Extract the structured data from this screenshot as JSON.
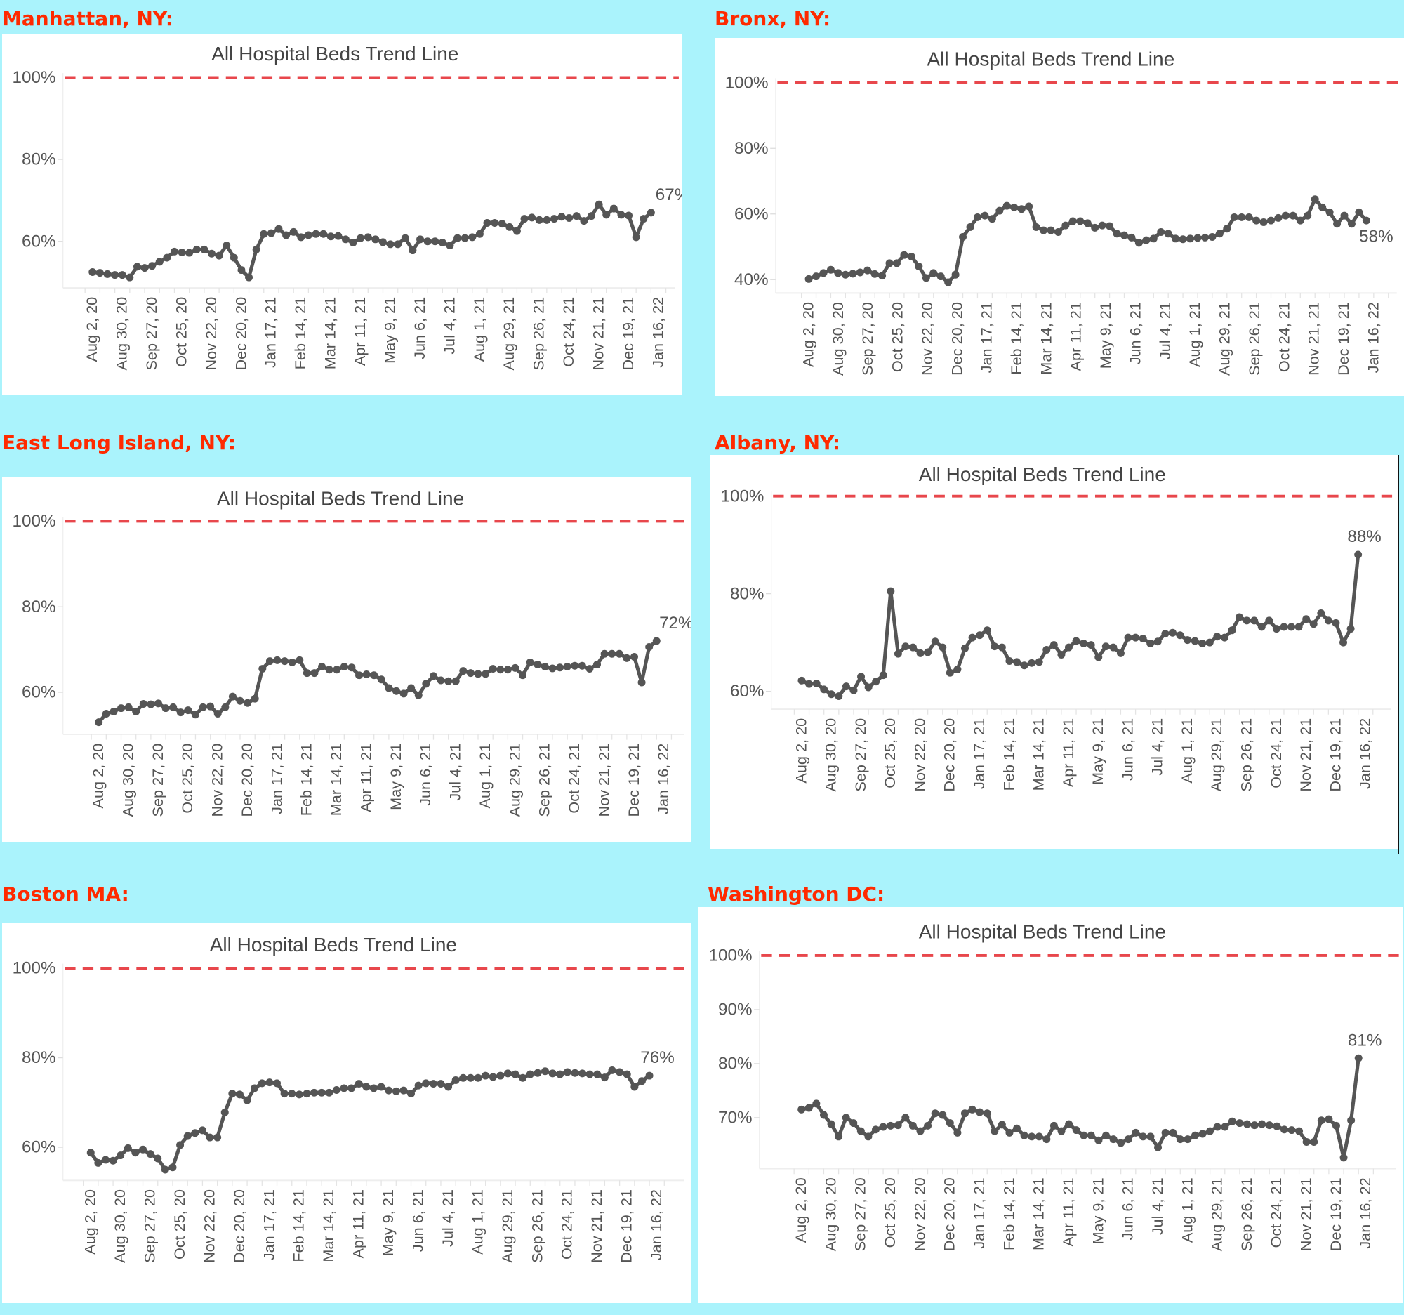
{
  "chart_data": [
    {
      "type": "line",
      "location": "Manhattan, NY:",
      "title": "All Hospital Beds Trend Line",
      "y_ticks": [
        "60%",
        "80%",
        "100%"
      ],
      "y_tick_values": [
        60,
        80,
        100
      ],
      "reference_line": 100,
      "reference_color": "#e8474c",
      "line_color": "#555555",
      "last_label": "67%",
      "x_tick_labels": [
        "Aug 2, 20",
        "Aug 30, 20",
        "Sep 27, 20",
        "Oct 25, 20",
        "Nov 22, 20",
        "Dec 20, 20",
        "Jan 17, 21",
        "Feb 14, 21",
        "Mar 14, 21",
        "Apr 11, 21",
        "May 9, 21",
        "Jun 6, 21",
        "Jul 4, 21",
        "Aug 1, 21",
        "Aug 29, 21",
        "Sep 26, 21",
        "Oct 24, 21",
        "Nov 21, 21",
        "Dec 19, 21",
        "Jan 16, 22"
      ],
      "values": [
        52.5,
        52.3,
        52,
        51.8,
        51.8,
        51.2,
        53.8,
        53.5,
        54,
        55,
        56,
        57.5,
        57.3,
        57.2,
        58,
        58,
        57,
        56.5,
        59,
        56,
        53,
        51.2,
        58,
        61.8,
        62,
        63,
        61.5,
        62.3,
        61,
        61.5,
        61.8,
        61.8,
        61.2,
        61.3,
        60.5,
        59.7,
        60.8,
        61,
        60.5,
        59.8,
        59.3,
        59.3,
        60.8,
        57.8,
        60.5,
        60,
        60,
        59.7,
        59,
        60.8,
        60.8,
        61,
        61.8,
        64.5,
        64.5,
        64.3,
        63.5,
        62.5,
        65.5,
        65.8,
        65.2,
        65.2,
        65.5,
        66,
        65.7,
        66.2,
        65,
        66.2,
        69,
        66.5,
        68,
        66.5,
        66.3,
        61,
        65.5,
        67
      ]
    },
    {
      "type": "line",
      "location": "Bronx, NY:",
      "title": "All Hospital Beds Trend Line",
      "y_ticks": [
        "40%",
        "60%",
        "80%",
        "100%"
      ],
      "y_tick_values": [
        40,
        60,
        80,
        100
      ],
      "reference_line": 100,
      "reference_color": "#e8474c",
      "line_color": "#555555",
      "last_label": "58%",
      "x_tick_labels": [
        "Aug 2, 20",
        "Aug 30, 20",
        "Sep 27, 20",
        "Oct 25, 20",
        "Nov 22, 20",
        "Dec 20, 20",
        "Jan 17, 21",
        "Feb 14, 21",
        "Mar 14, 21",
        "Apr 11, 21",
        "May 9, 21",
        "Jun 6, 21",
        "Jul 4, 21",
        "Aug 1, 21",
        "Aug 29, 21",
        "Sep 26, 21",
        "Oct 24, 21",
        "Nov 21, 21",
        "Dec 19, 21",
        "Jan 16, 22"
      ],
      "values": [
        40.2,
        41,
        42,
        43,
        42,
        41.5,
        41.8,
        42.2,
        42.8,
        41.7,
        41.2,
        45,
        45,
        47.5,
        47,
        44,
        40.5,
        42,
        41,
        39.2,
        41.5,
        53,
        56,
        59,
        59.5,
        58.5,
        61,
        62.5,
        62,
        61.5,
        62.3,
        56,
        55,
        55,
        54.5,
        56.5,
        57.8,
        57.8,
        57.2,
        55.8,
        56.5,
        56.3,
        54,
        53.5,
        52.8,
        51.2,
        52,
        52.5,
        54.5,
        54,
        52.5,
        52.3,
        52.5,
        52.7,
        52.8,
        53,
        54,
        55.5,
        59,
        59,
        59,
        58,
        57.5,
        58,
        58.8,
        59.5,
        59.5,
        58,
        59.5,
        64.5,
        62,
        60.5,
        57,
        59.5,
        57,
        60.5,
        58
      ]
    },
    {
      "type": "line",
      "location": "East Long Island, NY:",
      "title": "All Hospital Beds Trend Line",
      "y_ticks": [
        "60%",
        "80%",
        "100%"
      ],
      "y_tick_values": [
        60,
        80,
        100
      ],
      "reference_line": 100,
      "reference_color": "#e8474c",
      "line_color": "#555555",
      "last_label": "72%",
      "x_tick_labels": [
        "Aug 2, 20",
        "Aug 30, 20",
        "Sep 27, 20",
        "Oct 25, 20",
        "Nov 22, 20",
        "Dec 20, 20",
        "Jan 17, 21",
        "Feb 14, 21",
        "Mar 14, 21",
        "Apr 11, 21",
        "May 9, 21",
        "Jun 6, 21",
        "Jul 4, 21",
        "Aug 1, 21",
        "Aug 29, 21",
        "Sep 26, 21",
        "Oct 24, 21",
        "Nov 21, 21",
        "Dec 19, 21",
        "Jan 16, 22"
      ],
      "values": [
        53,
        55,
        55.5,
        56.3,
        56.5,
        55.5,
        57.3,
        57.2,
        57.4,
        56.3,
        56.5,
        55.3,
        55.8,
        54.8,
        56.5,
        56.7,
        55,
        56.5,
        59,
        58,
        57.5,
        58.5,
        65.5,
        67.3,
        67.5,
        67.3,
        67,
        67.5,
        64.5,
        64.5,
        66,
        65.3,
        65.3,
        66,
        65.8,
        64,
        64.2,
        64,
        63,
        61,
        60.3,
        59.7,
        61,
        59.3,
        62,
        63.8,
        62.8,
        62.6,
        62.6,
        65,
        64.5,
        64.3,
        64.3,
        65.5,
        65.3,
        65.3,
        65.7,
        64,
        67,
        66.5,
        66,
        65.6,
        65.8,
        66,
        66.2,
        66.2,
        65.5,
        66.5,
        69,
        69,
        69,
        68,
        68.3,
        62.3,
        70.6,
        72
      ]
    },
    {
      "type": "line",
      "location": "Albany, NY:",
      "title": "All Hospital Beds Trend Line",
      "y_ticks": [
        "60%",
        "80%",
        "100%"
      ],
      "y_tick_values": [
        60,
        80,
        100
      ],
      "reference_line": 100,
      "reference_color": "#e8474c",
      "line_color": "#555555",
      "last_label": "88%",
      "x_tick_labels": [
        "Aug 2, 20",
        "Aug 30, 20",
        "Sep 27, 20",
        "Oct 25, 20",
        "Nov 22, 20",
        "Dec 20, 20",
        "Jan 17, 21",
        "Feb 14, 21",
        "Mar 14, 21",
        "Apr 11, 21",
        "May 9, 21",
        "Jun 6, 21",
        "Jul 4, 21",
        "Aug 1, 21",
        "Aug 29, 21",
        "Sep 26, 21",
        "Oct 24, 21",
        "Nov 21, 21",
        "Dec 19, 21",
        "Jan 16, 22"
      ],
      "values": [
        62.2,
        61.5,
        61.6,
        60.4,
        59.4,
        59,
        61,
        60.2,
        63,
        60.8,
        62,
        63.3,
        80.5,
        67.7,
        69.2,
        69,
        67.8,
        68,
        70.2,
        69,
        63.8,
        64.5,
        68.8,
        71,
        71.5,
        72.5,
        69.2,
        69,
        66.2,
        66,
        65.3,
        65.8,
        66,
        68.5,
        69.5,
        67.5,
        69,
        70.3,
        69.8,
        69.5,
        67,
        69.2,
        69,
        67.8,
        71,
        71,
        70.8,
        69.8,
        70.2,
        71.8,
        72,
        71.5,
        70.5,
        70.3,
        69.8,
        70,
        71.2,
        71,
        72.5,
        75.2,
        74.5,
        74.5,
        73.2,
        74.5,
        72.8,
        73.2,
        73.2,
        73.2,
        74.8,
        73.8,
        76,
        74.5,
        74,
        70,
        72.8,
        88
      ]
    },
    {
      "type": "line",
      "location": "Boston MA:",
      "title": "All Hospital Beds Trend Line",
      "y_ticks": [
        "60%",
        "80%",
        "100%"
      ],
      "y_tick_values": [
        60,
        80,
        100
      ],
      "reference_line": 100,
      "reference_color": "#e8474c",
      "line_color": "#555555",
      "last_label": "76%",
      "x_tick_labels": [
        "Aug 2, 20",
        "Aug 30, 20",
        "Sep 27, 20",
        "Oct 25, 20",
        "Nov 22, 20",
        "Dec 20, 20",
        "Jan 17, 21",
        "Feb 14, 21",
        "Mar 14, 21",
        "Apr 11, 21",
        "May 9, 21",
        "Jun 6, 21",
        "Jul 4, 21",
        "Aug 1, 21",
        "Aug 29, 21",
        "Sep 26, 21",
        "Oct 24, 21",
        "Nov 21, 21",
        "Dec 19, 21",
        "Jan 16, 22"
      ],
      "values": [
        58.8,
        56.5,
        57.2,
        57,
        58.2,
        59.8,
        58.8,
        59.5,
        58.5,
        57.5,
        55,
        55.5,
        60.5,
        62.5,
        63.2,
        63.8,
        62.2,
        62.2,
        67.8,
        72,
        71.8,
        70.5,
        73.2,
        74.3,
        74.5,
        74.3,
        72,
        72,
        71.8,
        72,
        72.2,
        72.2,
        72.2,
        72.8,
        73.2,
        73.2,
        74.2,
        73.5,
        73.2,
        73.5,
        72.7,
        72.5,
        72.7,
        72,
        73.8,
        74.3,
        74.2,
        74.2,
        73.5,
        75,
        75.5,
        75.5,
        75.5,
        76,
        75.7,
        76,
        76.5,
        76.3,
        75.5,
        76.3,
        76.6,
        77,
        76.5,
        76.3,
        76.8,
        76.6,
        76.5,
        76.3,
        76.3,
        75.6,
        77.2,
        76.8,
        76.3,
        73.5,
        74.8,
        76
      ]
    },
    {
      "type": "line",
      "location": "Washington DC:",
      "title": "All Hospital Beds Trend Line",
      "y_ticks": [
        "70%",
        "80%",
        "90%",
        "100%"
      ],
      "y_tick_values": [
        70,
        80,
        90,
        100
      ],
      "reference_line": 100,
      "reference_color": "#e8474c",
      "line_color": "#555555",
      "last_label": "81%",
      "x_tick_labels": [
        "Aug 2, 20",
        "Aug 30, 20",
        "Sep 27, 20",
        "Oct 25, 20",
        "Nov 22, 20",
        "Dec 20, 20",
        "Jan 17, 21",
        "Feb 14, 21",
        "Mar 14, 21",
        "Apr 11, 21",
        "May 9, 21",
        "Jun 6, 21",
        "Jul 4, 21",
        "Aug 1, 21",
        "Aug 29, 21",
        "Sep 26, 21",
        "Oct 24, 21",
        "Nov 21, 21",
        "Dec 19, 21",
        "Jan 16, 22"
      ],
      "values": [
        71.5,
        71.8,
        72.6,
        70.5,
        68.8,
        66.5,
        70,
        69,
        67.5,
        66.5,
        67.8,
        68.3,
        68.5,
        68.6,
        70,
        68.5,
        67.5,
        68.5,
        70.8,
        70.5,
        69,
        67.2,
        70.8,
        71.5,
        71,
        70.8,
        67.5,
        68.7,
        67.2,
        68,
        66.7,
        66.5,
        66.5,
        66,
        68.5,
        67.5,
        68.8,
        67.7,
        66.7,
        66.7,
        65.8,
        66.7,
        66,
        65.3,
        66,
        67.2,
        66.5,
        66.5,
        64.5,
        67.2,
        67.2,
        66,
        66,
        66.7,
        67,
        67.5,
        68.3,
        68.3,
        69.3,
        69,
        68.8,
        68.6,
        68.8,
        68.6,
        68.4,
        67.8,
        67.7,
        67.5,
        65.5,
        65.5,
        69.5,
        69.7,
        68.5,
        62.6,
        69.5,
        81
      ]
    }
  ]
}
